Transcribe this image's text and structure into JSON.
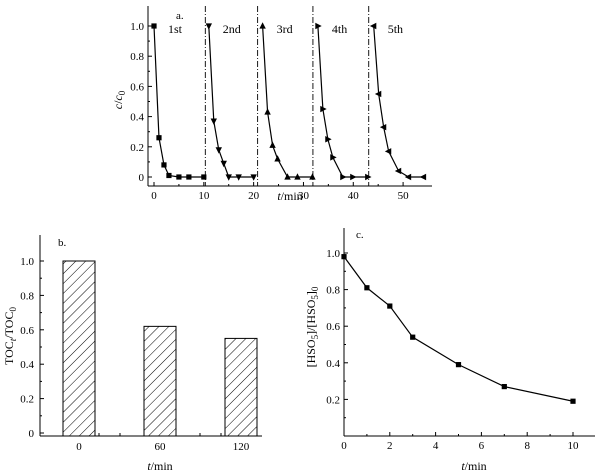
{
  "chart_data": [
    {
      "id": "a",
      "type": "line",
      "panel_label": "a.",
      "xlabel_italic": "t",
      "xlabel_unit": "/min",
      "ylabel_main": "c",
      "ylabel_sep": "/",
      "ylabel_den": "c",
      "ylabel_sub": "0",
      "xlim": [
        0,
        55
      ],
      "ylim": [
        -0.08,
        1.08
      ],
      "xticks": [
        0,
        10,
        20,
        30,
        40,
        50
      ],
      "yticks": [
        0,
        0.2,
        0.4,
        0.6,
        0.8,
        1.0
      ],
      "ytick_labels": [
        "0",
        "0.2",
        "0.4",
        "0.6",
        "0.8",
        "1.0"
      ],
      "dividers": [
        10.3,
        20.8,
        31.9,
        43.1
      ],
      "series": [
        {
          "name": "1st",
          "marker": "square",
          "x": [
            0,
            1,
            2,
            3,
            5,
            7,
            10
          ],
          "y": [
            1.0,
            0.26,
            0.08,
            0.01,
            0,
            0,
            0
          ]
        },
        {
          "name": "2nd",
          "marker": "triangle-down",
          "x": [
            11,
            12,
            13,
            14,
            15,
            17,
            20
          ],
          "y": [
            1.0,
            0.37,
            0.18,
            0.09,
            0,
            0,
            0
          ]
        },
        {
          "name": "3rd",
          "marker": "triangle-up",
          "x": [
            21.8,
            22.8,
            23.8,
            24.8,
            26.8,
            28.8,
            31.8
          ],
          "y": [
            1.0,
            0.43,
            0.21,
            0.12,
            0,
            0,
            0
          ]
        },
        {
          "name": "4th",
          "marker": "triangle-right",
          "x": [
            32.9,
            33.9,
            34.9,
            35.9,
            37.9,
            39.9,
            42.9
          ],
          "y": [
            1.0,
            0.45,
            0.25,
            0.13,
            0,
            0,
            0
          ]
        },
        {
          "name": "5th",
          "marker": "triangle-left",
          "x": [
            44.1,
            45.1,
            46.1,
            47.1,
            49.1,
            51.1,
            54.1
          ],
          "y": [
            1.0,
            0.55,
            0.33,
            0.17,
            0.04,
            0,
            0
          ]
        }
      ]
    },
    {
      "id": "b",
      "type": "bar",
      "panel_label": "b.",
      "xlabel_italic": "t",
      "xlabel_unit": "/min",
      "ylabel_a": "TOC",
      "ylabel_a_sub": "t",
      "ylabel_b": "/TOC",
      "ylabel_b_sub": "0",
      "categories": [
        "0",
        "60",
        "120"
      ],
      "values": [
        1.0,
        0.62,
        0.55
      ],
      "ylim": [
        0.0,
        1.1
      ],
      "yticks": [
        0,
        0.2,
        0.4,
        0.6,
        0.8,
        1.0
      ],
      "ytick_labels": [
        "0",
        "0.2",
        "0.4",
        "0.6",
        "0.8",
        "1.0"
      ]
    },
    {
      "id": "c",
      "type": "line",
      "panel_label": "c.",
      "xlabel_italic": "t",
      "xlabel_unit": "/min",
      "ylabel_a": "[HSO",
      "ylabel_a_sub": "5",
      "ylabel_b": "]/[HSO",
      "ylabel_b_sub": "5",
      "ylabel_c": "]",
      "ylabel_c_sub": "0",
      "xlim": [
        0,
        11
      ],
      "ylim": [
        0.0,
        1.05
      ],
      "xticks": [
        0,
        2,
        4,
        6,
        8,
        10
      ],
      "yticks": [
        0.2,
        0.4,
        0.6,
        0.8,
        1.0
      ],
      "ytick_labels": [
        "0.2",
        "0.4",
        "0.6",
        "0.8",
        "1.0"
      ],
      "series": [
        {
          "name": "HSO5",
          "marker": "square",
          "x": [
            0,
            1,
            2,
            3,
            5,
            7,
            10
          ],
          "y": [
            0.98,
            0.81,
            0.71,
            0.54,
            0.39,
            0.27,
            0.19
          ]
        }
      ]
    }
  ]
}
